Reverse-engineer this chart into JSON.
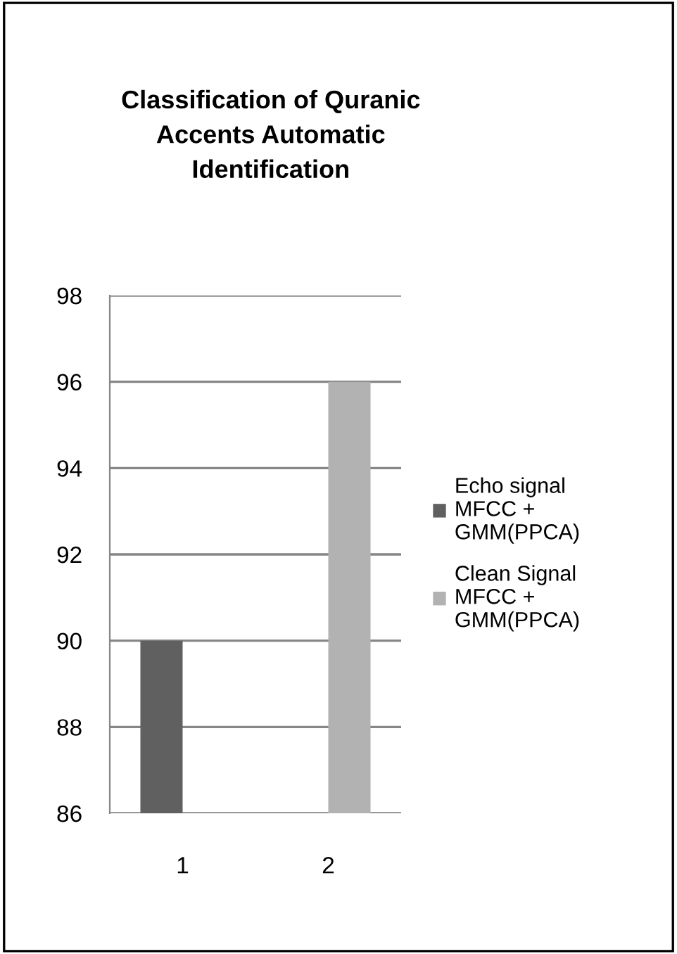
{
  "chart_data": {
    "type": "bar",
    "title": "Classification of Quranic\nAccents Automatic\nIdentification",
    "categories": [
      "1",
      "2"
    ],
    "series": [
      {
        "name": "Echo signal\nMFCC +\nGMM(PPCA)",
        "color": "#606060",
        "values": [
          90,
          null
        ]
      },
      {
        "name": "Clean Signal\nMFCC +\nGMM(PPCA)",
        "color": "#b2b2b2",
        "values": [
          null,
          96
        ]
      }
    ],
    "ylim": [
      86,
      98
    ],
    "yticks": [
      86,
      88,
      90,
      92,
      94,
      96,
      98
    ],
    "grid": "y",
    "legend": "right"
  }
}
